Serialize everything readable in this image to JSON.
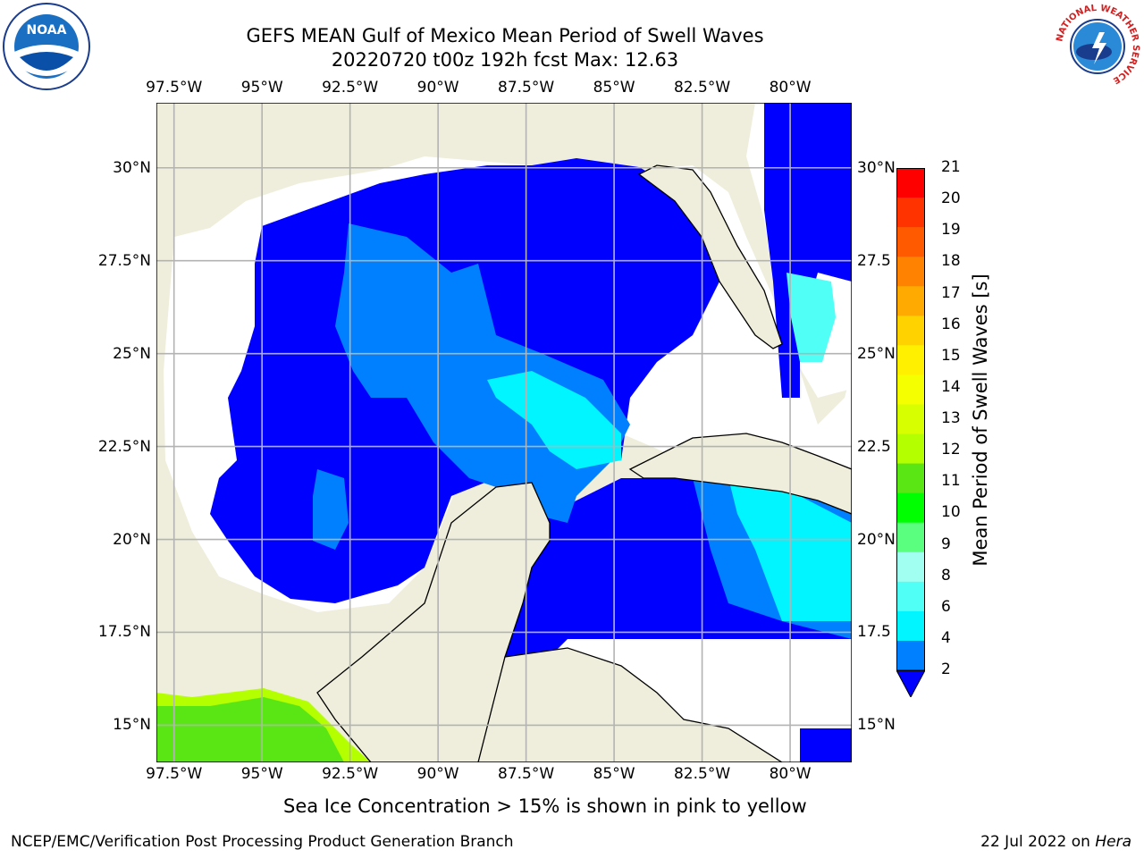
{
  "header": {
    "title_line1": "GEFS MEAN Gulf of Mexico Mean Period of Swell Waves",
    "title_line2": "20220720 t00z 192h fcst   Max: 12.63"
  },
  "logos": {
    "left": {
      "text": "NOAA",
      "ring_text": "NATIONAL OCEANIC AND ATMOSPHERIC ADMINISTRATION · U.S. DEPARTMENT OF COMMERCE"
    },
    "right": {
      "ring_text": "NATIONAL WEATHER SERVICE"
    }
  },
  "map": {
    "lon_ticks": [
      "97.5°W",
      "95°W",
      "92.5°W",
      "90°W",
      "87.5°W",
      "85°W",
      "82.5°W",
      "80°W"
    ],
    "lat_ticks_left": [
      "30°N",
      "27.5°N",
      "25°N",
      "22.5°N",
      "20°N",
      "17.5°N",
      "15°N"
    ],
    "lat_ticks_right": [
      "30°N",
      "27.5",
      "25°N",
      "22.5",
      "20°N",
      "17.5",
      "15°N"
    ],
    "lon_range": [
      -98,
      -78.25
    ],
    "lat_range": [
      14,
      31.75
    ],
    "colors": {
      "land": "#efeedc",
      "ocean_nodata": "#ffffff",
      "grid": "#b3b3b3"
    }
  },
  "colorbar": {
    "label": "Mean Period of Swell Waves [s]",
    "ticks": [
      "21",
      "20",
      "19",
      "18",
      "17",
      "16",
      "15",
      "14",
      "13",
      "12",
      "11",
      "10",
      "9",
      "8",
      "6",
      "4",
      "2"
    ],
    "colors": [
      "#ff0000",
      "#ff3300",
      "#ff5a00",
      "#ff8200",
      "#ffaa00",
      "#ffd200",
      "#fff000",
      "#f5ff00",
      "#d7ff00",
      "#b4ff00",
      "#5ae614",
      "#00ff00",
      "#5aff80",
      "#a0fff0",
      "#50fff5",
      "#00f5ff",
      "#0080ff"
    ],
    "extend_color": "#0000ff"
  },
  "caption": "Sea Ice Concentration > 15% is shown in pink to yellow",
  "footer": {
    "left": "NCEP/EMC/Verification Post Processing Product Generation Branch",
    "right_date": "22 Jul 2022 on ",
    "right_machine": "Hera"
  }
}
